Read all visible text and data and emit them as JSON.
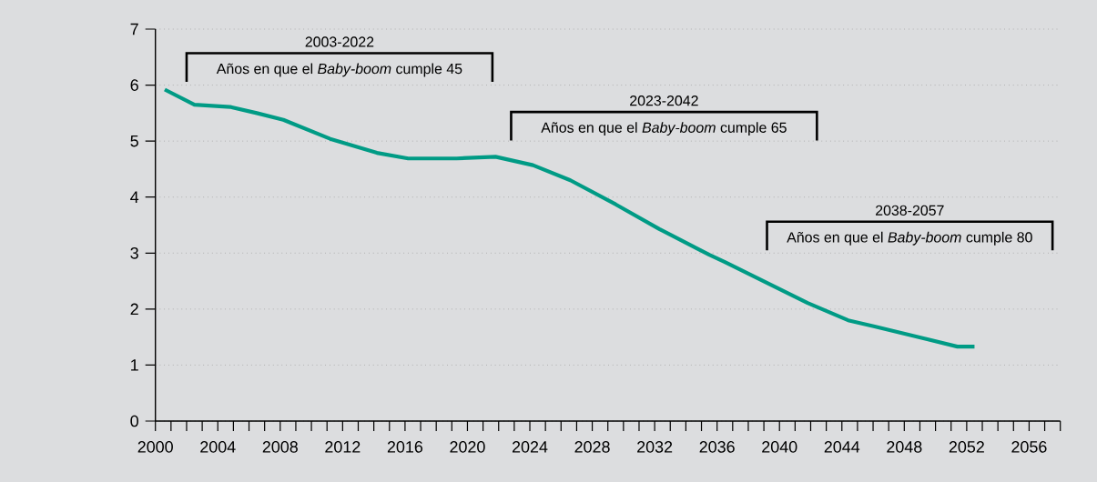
{
  "chart_data": {
    "type": "line",
    "x": [
      2000.6,
      2002.5,
      2004.8,
      2006.5,
      2008.2,
      2011.2,
      2014.2,
      2016.2,
      2019.3,
      2021.8,
      2024.2,
      2026.6,
      2029.5,
      2032.3,
      2035.5,
      2036.5,
      2041.8,
      2044.4,
      2046.1,
      2051.4,
      2052.5
    ],
    "series": [
      {
        "color": "#009b85",
        "values": [
          5.92,
          5.65,
          5.61,
          5.5,
          5.38,
          5.04,
          4.79,
          4.69,
          4.69,
          4.72,
          4.57,
          4.3,
          3.87,
          3.43,
          2.97,
          2.84,
          2.11,
          1.8,
          1.69,
          1.33,
          1.33
        ]
      }
    ],
    "xlim": [
      2000,
      2058
    ],
    "xticks": [
      2000,
      {
        "value": 2001,
        "label": null
      },
      {
        "value": 2002,
        "label": null
      },
      {
        "value": 2003,
        "label": null
      },
      2004,
      {
        "value": 2005,
        "label": null
      },
      {
        "value": 2006,
        "label": null
      },
      {
        "value": 2007,
        "label": null
      },
      2008,
      {
        "value": 2009,
        "label": null
      },
      {
        "value": 2010,
        "label": null
      },
      {
        "value": 2011,
        "label": null
      },
      2012,
      {
        "value": 2013,
        "label": null
      },
      {
        "value": 2014,
        "label": null
      },
      {
        "value": 2015,
        "label": null
      },
      2016,
      {
        "value": 2017,
        "label": null
      },
      {
        "value": 2018,
        "label": null
      },
      {
        "value": 2019,
        "label": null
      },
      2020,
      {
        "value": 2021,
        "label": null
      },
      {
        "value": 2022,
        "label": null
      },
      {
        "value": 2023,
        "label": null
      },
      2024,
      {
        "value": 2025,
        "label": null
      },
      {
        "value": 2026,
        "label": null
      },
      {
        "value": 2027,
        "label": null
      },
      2028,
      {
        "value": 2029,
        "label": null
      },
      {
        "value": 2030,
        "label": null
      },
      {
        "value": 2031,
        "label": null
      },
      2032,
      {
        "value": 2033,
        "label": null
      },
      {
        "value": 2034,
        "label": null
      },
      {
        "value": 2035,
        "label": null
      },
      2036,
      {
        "value": 2037,
        "label": null
      },
      {
        "value": 2038,
        "label": null
      },
      {
        "value": 2039,
        "label": null
      },
      2040,
      {
        "value": 2041,
        "label": null
      },
      {
        "value": 2042,
        "label": null
      },
      {
        "value": 2043,
        "label": null
      },
      2044,
      {
        "value": 2045,
        "label": null
      },
      {
        "value": 2046,
        "label": null
      },
      {
        "value": 2047,
        "label": null
      },
      2048,
      {
        "value": 2049,
        "label": null
      },
      {
        "value": 2050,
        "label": null
      },
      {
        "value": 2051,
        "label": null
      },
      2052,
      {
        "value": 2053,
        "label": null
      },
      {
        "value": 2054,
        "label": null
      },
      {
        "value": 2055,
        "label": null
      },
      2056,
      {
        "value": 2057,
        "label": null
      },
      {
        "value": 2058,
        "label": null
      }
    ],
    "ylim": [
      0,
      7
    ],
    "yticks": [
      0,
      1,
      2,
      3,
      4,
      5,
      6,
      7
    ],
    "grid": "y",
    "annotations": [
      "2003-2022",
      "Años en que el *Baby-boom* cumple 45",
      "2023-2042",
      "Años en que el *Baby-boom* cumple 65",
      "2038-2057",
      "Años en que el *Baby-boom* cumple 80"
    ]
  }
}
